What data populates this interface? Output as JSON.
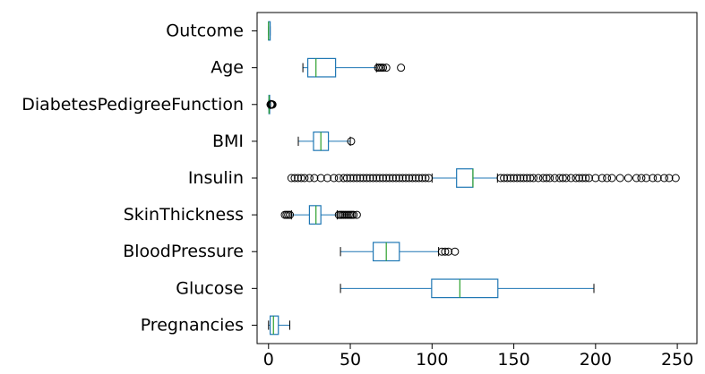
{
  "chart_data": {
    "type": "boxplot",
    "orientation": "horizontal",
    "title": "",
    "xlabel": "",
    "ylabel": "",
    "xlim": [
      -7,
      262
    ],
    "xticks": [
      0,
      50,
      100,
      150,
      200,
      250
    ],
    "grid": false,
    "colors": {
      "box": "#1f77b4",
      "median": "#2ca02c",
      "flier": "#000000",
      "axis": "#000000"
    },
    "categories": [
      "Pregnancies",
      "Glucose",
      "BloodPressure",
      "SkinThickness",
      "Insulin",
      "BMI",
      "DiabetesPedigreeFunction",
      "Age",
      "Outcome"
    ],
    "boxes": [
      {
        "label": "Pregnancies",
        "whislo": 0,
        "q1": 1,
        "med": 3,
        "q3": 6,
        "whishi": 13,
        "fliers": []
      },
      {
        "label": "Glucose",
        "whislo": 44,
        "q1": 99.75,
        "med": 117,
        "q3": 140.25,
        "whishi": 199,
        "fliers": []
      },
      {
        "label": "BloodPressure",
        "whislo": 44,
        "q1": 64,
        "med": 72,
        "q3": 80,
        "whishi": 104,
        "fliers": [
          106,
          108,
          110,
          114
        ]
      },
      {
        "label": "SkinThickness",
        "whislo": 14,
        "q1": 25,
        "med": 29,
        "q3": 32,
        "whishi": 42,
        "fliers": [
          10,
          11,
          12,
          13,
          43,
          44,
          45,
          46,
          47,
          48,
          49,
          50,
          51,
          52,
          54
        ]
      },
      {
        "label": "Insulin",
        "whislo": 100,
        "q1": 115,
        "med": 125,
        "q3": 125,
        "whishi": 140,
        "fliers": [
          14,
          16,
          18,
          20,
          22,
          25,
          28,
          32,
          36,
          40,
          43,
          46,
          48,
          50,
          52,
          54,
          56,
          58,
          60,
          62,
          64,
          66,
          68,
          70,
          72,
          74,
          76,
          78,
          80,
          82,
          84,
          86,
          88,
          90,
          92,
          94,
          96,
          98,
          142,
          144,
          146,
          148,
          150,
          152,
          154,
          156,
          158,
          160,
          162,
          165,
          168,
          170,
          172,
          175,
          178,
          180,
          182,
          185,
          188,
          190,
          192,
          194,
          196,
          200,
          204,
          207,
          210,
          215,
          220,
          225,
          228,
          231,
          235,
          238,
          242,
          245,
          249
        ]
      },
      {
        "label": "BMI",
        "whislo": 18.2,
        "q1": 27.5,
        "med": 32,
        "q3": 36.6,
        "whishi": 50,
        "fliers": [
          50.5
        ]
      },
      {
        "label": "DiabetesPedigreeFunction",
        "whislo": 0.08,
        "q1": 0.24,
        "med": 0.37,
        "q3": 0.63,
        "whishi": 1.2,
        "fliers": [
          1.25,
          1.3,
          1.4,
          1.5,
          1.6,
          1.7,
          1.8,
          1.9,
          2.0,
          2.1,
          2.2,
          2.3,
          2.42
        ]
      },
      {
        "label": "Age",
        "whislo": 21,
        "q1": 24,
        "med": 29,
        "q3": 41,
        "whishi": 66,
        "fliers": [
          67,
          68,
          69,
          70,
          72,
          81
        ]
      },
      {
        "label": "Outcome",
        "whislo": 0,
        "q1": 0,
        "med": 0,
        "q3": 1,
        "whishi": 1,
        "fliers": []
      }
    ]
  }
}
